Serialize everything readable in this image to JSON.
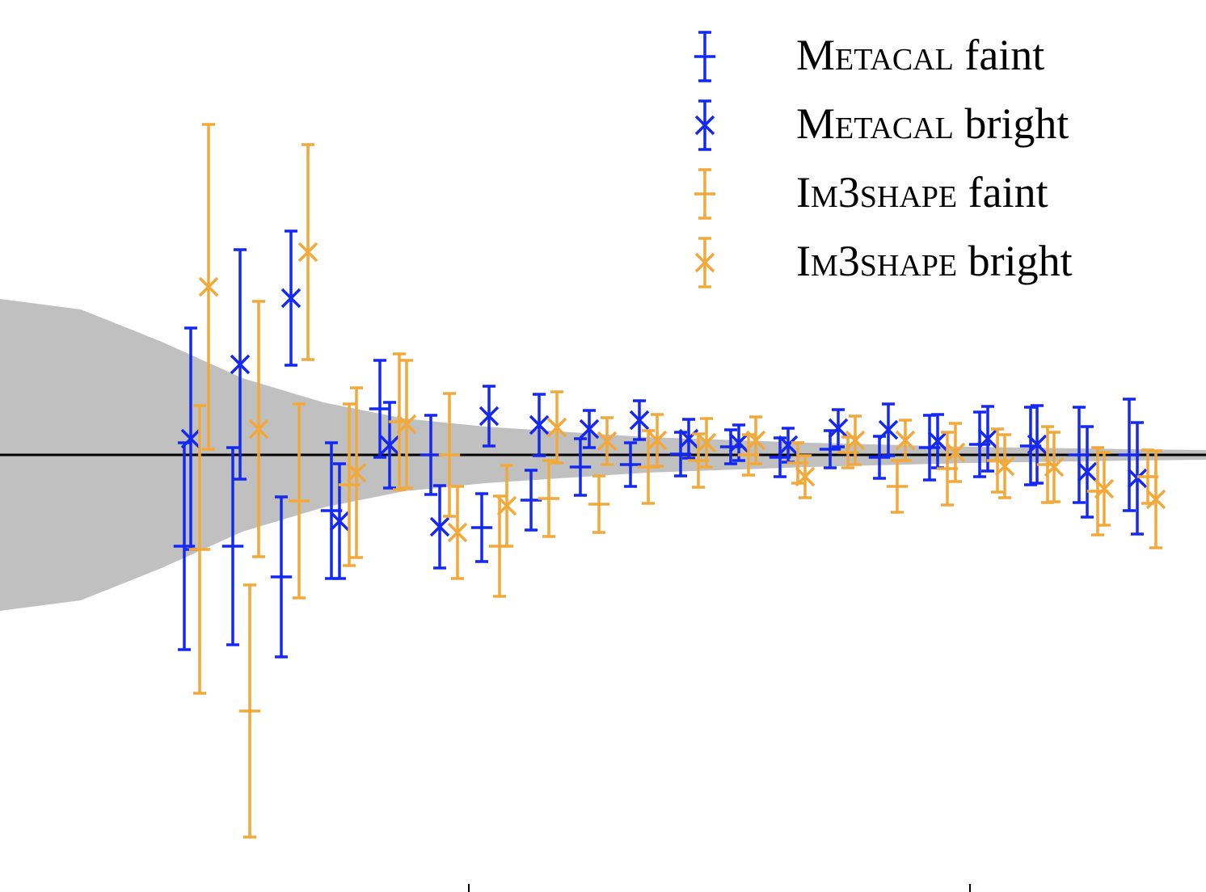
{
  "chart_data": {
    "type": "errorbar",
    "xlim": [
      0,
      14.92
    ],
    "ylim": [
      -5.41,
      5.63
    ],
    "xticks": [
      5.8,
      12.0
    ],
    "hline": 0,
    "legend": "upper right",
    "band": {
      "color": "#c0c0c0",
      "x": [
        0,
        1,
        2,
        3,
        4,
        5,
        6,
        8,
        10,
        12,
        14,
        14.92
      ],
      "upper": [
        1.93,
        1.8,
        1.4,
        0.95,
        0.65,
        0.45,
        0.35,
        0.22,
        0.15,
        0.1,
        0.07,
        0.06
      ],
      "lower": [
        -1.93,
        -1.8,
        -1.4,
        -0.95,
        -0.65,
        -0.45,
        -0.35,
        -0.22,
        -0.15,
        -0.1,
        -0.07,
        -0.06
      ]
    },
    "series": [
      {
        "name": "Metacal faint",
        "color": "#1428f0",
        "marker": "+",
        "x": [
          2.28,
          2.88,
          3.48,
          4.1,
          4.7,
          5.33,
          5.96,
          6.57,
          7.18,
          7.8,
          8.42,
          9.04,
          9.65,
          10.27,
          10.88,
          11.5,
          12.12,
          12.75,
          13.35,
          13.97
        ],
        "values": [
          -1.13,
          -1.13,
          -1.51,
          -0.69,
          0.57,
          0.0,
          -0.9,
          -0.56,
          -0.15,
          -0.12,
          0.01,
          0.1,
          -0.03,
          0.07,
          -0.03,
          0.09,
          0.13,
          0.11,
          0.0,
          0.0
        ],
        "errors": [
          1.28,
          1.22,
          0.99,
          0.84,
          0.6,
          0.49,
          0.42,
          0.37,
          0.35,
          0.27,
          0.27,
          0.21,
          0.24,
          0.23,
          0.26,
          0.4,
          0.4,
          0.48,
          0.59,
          0.69
        ]
      },
      {
        "name": "Metacal bright",
        "color": "#1428f0",
        "marker": "x",
        "x": [
          2.36,
          2.97,
          3.6,
          4.2,
          4.82,
          5.44,
          6.05,
          6.67,
          7.29,
          7.91,
          8.52,
          9.14,
          9.75,
          10.37,
          10.99,
          11.6,
          12.22,
          12.83,
          13.45,
          14.07
        ],
        "values": [
          0.2,
          1.12,
          1.94,
          -0.82,
          0.12,
          -0.89,
          0.48,
          0.37,
          0.32,
          0.43,
          0.2,
          0.15,
          0.12,
          0.33,
          0.31,
          0.17,
          0.2,
          0.13,
          -0.21,
          -0.29
        ],
        "errors": [
          1.37,
          1.42,
          0.83,
          0.71,
          0.53,
          0.51,
          0.37,
          0.38,
          0.23,
          0.24,
          0.24,
          0.22,
          0.21,
          0.23,
          0.32,
          0.33,
          0.4,
          0.48,
          0.56,
          0.69
        ]
      },
      {
        "name": "Im3shape faint",
        "color": "#f2a93b",
        "marker": "+",
        "x": [
          2.47,
          3.09,
          3.7,
          4.32,
          4.94,
          5.56,
          6.18,
          6.79,
          7.41,
          8.02,
          8.64,
          9.26,
          9.87,
          10.49,
          11.1,
          11.72,
          12.34,
          12.96,
          13.58,
          14.2
        ],
        "values": [
          -1.17,
          -3.17,
          -0.57,
          -0.37,
          0.41,
          0.0,
          -1.13,
          -0.54,
          -0.61,
          -0.15,
          -0.07,
          0.0,
          -0.1,
          0.03,
          -0.39,
          -0.17,
          -0.07,
          -0.12,
          -0.45,
          -0.27
        ],
        "errors": [
          1.78,
          1.56,
          1.2,
          1.0,
          0.84,
          0.76,
          0.62,
          0.47,
          0.35,
          0.45,
          0.33,
          0.25,
          0.25,
          0.19,
          0.32,
          0.45,
          0.39,
          0.47,
          0.54,
          0.33
        ]
      },
      {
        "name": "Im3shape bright",
        "color": "#f2a93b",
        "marker": "x",
        "x": [
          2.58,
          3.2,
          3.81,
          4.41,
          5.03,
          5.66,
          6.27,
          6.89,
          7.51,
          8.13,
          8.74,
          9.35,
          9.96,
          10.58,
          11.2,
          11.82,
          12.43,
          13.04,
          13.66,
          14.3
        ],
        "values": [
          2.08,
          0.32,
          2.51,
          -0.22,
          0.38,
          -0.96,
          -0.63,
          0.34,
          0.17,
          0.18,
          0.15,
          0.18,
          -0.27,
          0.18,
          0.18,
          0.03,
          -0.14,
          -0.15,
          -0.42,
          -0.55
        ],
        "errors": [
          2.01,
          1.58,
          1.33,
          1.05,
          0.79,
          0.57,
          0.5,
          0.44,
          0.29,
          0.32,
          0.3,
          0.29,
          0.26,
          0.3,
          0.25,
          0.36,
          0.39,
          0.43,
          0.45,
          0.6
        ]
      }
    ]
  }
}
